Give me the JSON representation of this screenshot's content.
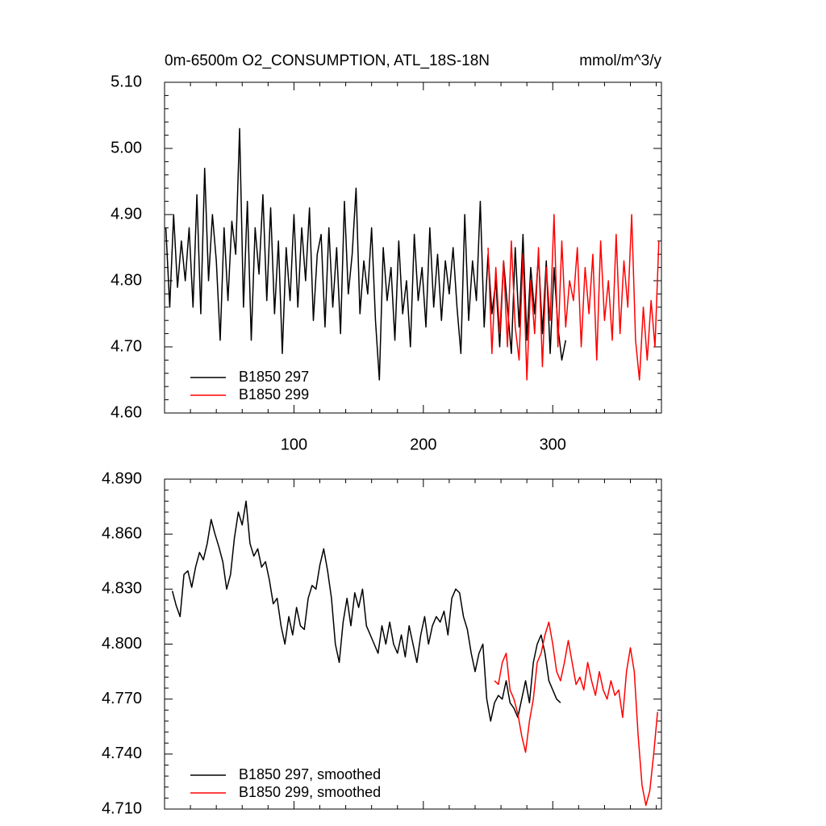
{
  "chart_data": [
    {
      "type": "line",
      "title": "0m-6500m O2_CONSUMPTION, ATL_18S-18N",
      "units": "mmol/m^3/y",
      "xlim": [
        0,
        384
      ],
      "xticks": [
        100,
        200,
        300
      ],
      "xtick_labels": true,
      "ylim": [
        4.6,
        5.1
      ],
      "yticks": [
        {
          "value": 4.6,
          "label": "4.60"
        },
        {
          "value": 4.7,
          "label": "4.70"
        },
        {
          "value": 4.8,
          "label": "4.80"
        },
        {
          "value": 4.9,
          "label": "4.90"
        },
        {
          "value": 5.0,
          "label": "5.00"
        },
        {
          "value": 5.1,
          "label": "5.10"
        }
      ],
      "series": [
        {
          "name": "B1850 297",
          "color": "#000000",
          "x": [
            1,
            4,
            7,
            10,
            13,
            16,
            19,
            22,
            25,
            28,
            31,
            34,
            37,
            40,
            43,
            46,
            49,
            52,
            55,
            58,
            61,
            64,
            67,
            70,
            73,
            76,
            79,
            82,
            85,
            88,
            91,
            94,
            97,
            100,
            103,
            106,
            109,
            112,
            115,
            118,
            121,
            124,
            127,
            130,
            133,
            136,
            139,
            142,
            145,
            148,
            151,
            154,
            157,
            160,
            163,
            166,
            169,
            172,
            175,
            178,
            181,
            184,
            187,
            190,
            193,
            196,
            199,
            202,
            205,
            208,
            211,
            214,
            217,
            220,
            223,
            226,
            229,
            232,
            235,
            238,
            241,
            244,
            247,
            250,
            253,
            256,
            259,
            262,
            265,
            268,
            271,
            274,
            277,
            280,
            283,
            286,
            289,
            292,
            295,
            298,
            301,
            304,
            307,
            310
          ],
          "values": [
            4.88,
            4.76,
            4.9,
            4.79,
            4.86,
            4.8,
            4.88,
            4.76,
            4.93,
            4.75,
            4.97,
            4.8,
            4.9,
            4.83,
            4.71,
            4.88,
            4.77,
            4.89,
            4.84,
            5.03,
            4.76,
            4.92,
            4.71,
            4.88,
            4.81,
            4.93,
            4.77,
            4.91,
            4.75,
            4.86,
            4.69,
            4.85,
            4.77,
            4.9,
            4.76,
            4.88,
            4.8,
            4.91,
            4.74,
            4.84,
            4.87,
            4.73,
            4.88,
            4.76,
            4.85,
            4.72,
            4.92,
            4.78,
            4.84,
            4.94,
            4.75,
            4.83,
            4.78,
            4.88,
            4.74,
            4.65,
            4.85,
            4.77,
            4.82,
            4.71,
            4.86,
            4.75,
            4.8,
            4.7,
            4.87,
            4.77,
            4.82,
            4.73,
            4.88,
            4.76,
            4.84,
            4.74,
            4.83,
            4.78,
            4.85,
            4.76,
            4.69,
            4.9,
            4.74,
            4.83,
            4.77,
            4.92,
            4.73,
            4.84,
            4.75,
            4.8,
            4.7,
            4.83,
            4.76,
            4.69,
            4.85,
            4.73,
            4.87,
            4.71,
            4.82,
            4.75,
            4.84,
            4.72,
            4.83,
            4.69,
            4.82,
            4.73,
            4.68,
            4.71
          ]
        },
        {
          "name": "B1850 299",
          "color": "#ff0000",
          "x": [
            250,
            253,
            256,
            259,
            262,
            265,
            268,
            271,
            274,
            277,
            280,
            283,
            286,
            289,
            292,
            295,
            298,
            301,
            304,
            307,
            310,
            313,
            316,
            319,
            322,
            325,
            328,
            331,
            334,
            337,
            340,
            343,
            346,
            349,
            352,
            355,
            358,
            361,
            364,
            367,
            370,
            373,
            376,
            379,
            382
          ],
          "values": [
            4.85,
            4.69,
            4.82,
            4.72,
            4.83,
            4.7,
            4.86,
            4.73,
            4.68,
            4.84,
            4.65,
            4.8,
            4.72,
            4.85,
            4.67,
            4.82,
            4.74,
            4.9,
            4.7,
            4.86,
            4.73,
            4.8,
            4.77,
            4.85,
            4.7,
            4.82,
            4.75,
            4.84,
            4.68,
            4.86,
            4.74,
            4.8,
            4.71,
            4.87,
            4.72,
            4.83,
            4.76,
            4.9,
            4.71,
            4.65,
            4.76,
            4.68,
            4.77,
            4.7,
            4.86
          ]
        }
      ]
    },
    {
      "type": "line",
      "xlim": [
        0,
        384
      ],
      "xticks": [
        100,
        200,
        300
      ],
      "xtick_labels": false,
      "ylim": [
        4.71,
        4.89
      ],
      "yticks": [
        {
          "value": 4.71,
          "label": "4.710"
        },
        {
          "value": 4.74,
          "label": "4.740"
        },
        {
          "value": 4.77,
          "label": "4.770"
        },
        {
          "value": 4.8,
          "label": "4.800"
        },
        {
          "value": 4.83,
          "label": "4.830"
        },
        {
          "value": 4.86,
          "label": "4.860"
        },
        {
          "value": 4.89,
          "label": "4.890"
        }
      ],
      "series": [
        {
          "name": "B1850 297, smoothed",
          "color": "#000000",
          "x": [
            6,
            9,
            12,
            15,
            18,
            21,
            24,
            27,
            30,
            33,
            36,
            39,
            42,
            45,
            48,
            51,
            54,
            57,
            60,
            63,
            66,
            69,
            72,
            75,
            78,
            81,
            84,
            87,
            90,
            93,
            96,
            99,
            102,
            105,
            108,
            111,
            114,
            117,
            120,
            123,
            126,
            129,
            132,
            135,
            138,
            141,
            144,
            147,
            150,
            153,
            156,
            159,
            162,
            165,
            168,
            171,
            174,
            177,
            180,
            183,
            186,
            189,
            192,
            195,
            198,
            201,
            204,
            207,
            210,
            213,
            216,
            219,
            222,
            225,
            228,
            231,
            234,
            237,
            240,
            243,
            246,
            249,
            252,
            255,
            258,
            261,
            264,
            267,
            270,
            273,
            276,
            279,
            282,
            285,
            288,
            291,
            294,
            297,
            300,
            303,
            306
          ],
          "values": [
            4.829,
            4.821,
            4.815,
            4.838,
            4.84,
            4.831,
            4.842,
            4.85,
            4.846,
            4.855,
            4.868,
            4.86,
            4.853,
            4.845,
            4.83,
            4.838,
            4.858,
            4.872,
            4.865,
            4.878,
            4.855,
            4.848,
            4.852,
            4.842,
            4.845,
            4.835,
            4.822,
            4.825,
            4.81,
            4.8,
            4.815,
            4.805,
            4.82,
            4.81,
            4.808,
            4.825,
            4.832,
            4.83,
            4.843,
            4.852,
            4.84,
            4.825,
            4.8,
            4.79,
            4.812,
            4.825,
            4.81,
            4.828,
            4.82,
            4.83,
            4.81,
            4.805,
            4.8,
            4.795,
            4.81,
            4.8,
            4.812,
            4.8,
            4.795,
            4.805,
            4.793,
            4.81,
            4.8,
            4.79,
            4.805,
            4.815,
            4.8,
            4.81,
            4.815,
            4.812,
            4.818,
            4.805,
            4.825,
            4.83,
            4.828,
            4.815,
            4.808,
            4.795,
            4.785,
            4.795,
            4.8,
            4.77,
            4.758,
            4.768,
            4.772,
            4.77,
            4.78,
            4.768,
            4.765,
            4.76,
            4.77,
            4.78,
            4.768,
            4.79,
            4.8,
            4.805,
            4.795,
            4.78,
            4.775,
            4.77,
            4.768
          ]
        },
        {
          "name": "B1850 299, smoothed",
          "color": "#ff0000",
          "x": [
            255,
            258,
            261,
            264,
            267,
            270,
            273,
            276,
            279,
            282,
            285,
            288,
            291,
            294,
            297,
            300,
            303,
            306,
            309,
            312,
            315,
            318,
            321,
            324,
            327,
            330,
            333,
            336,
            339,
            342,
            345,
            348,
            351,
            354,
            357,
            360,
            363,
            366,
            369,
            372,
            375,
            378,
            381
          ],
          "values": [
            4.78,
            4.778,
            4.79,
            4.795,
            4.775,
            4.77,
            4.762,
            4.75,
            4.741,
            4.758,
            4.77,
            4.79,
            4.795,
            4.805,
            4.812,
            4.8,
            4.785,
            4.78,
            4.79,
            4.802,
            4.79,
            4.778,
            4.782,
            4.775,
            4.79,
            4.78,
            4.772,
            4.785,
            4.775,
            4.77,
            4.78,
            4.772,
            4.775,
            4.76,
            4.785,
            4.798,
            4.785,
            4.75,
            4.723,
            4.712,
            4.72,
            4.74,
            4.763
          ]
        }
      ]
    }
  ]
}
